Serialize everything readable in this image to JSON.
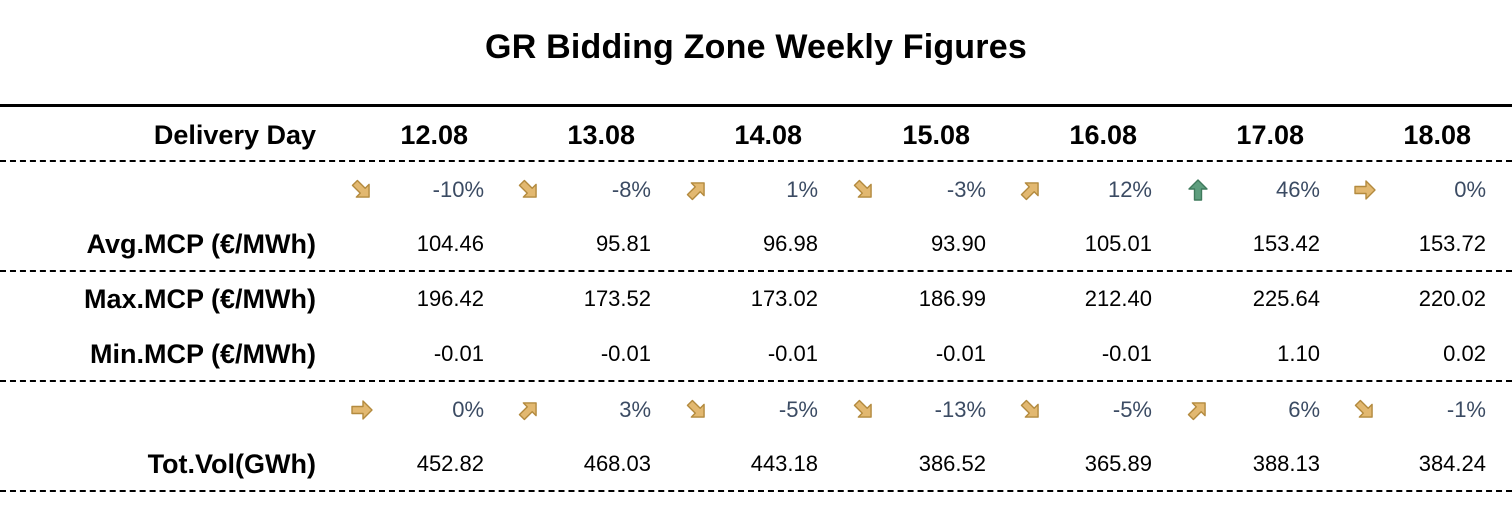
{
  "title": "GR Bidding Zone Weekly Figures",
  "colors": {
    "arrow_gold_fill": "#e2b870",
    "arrow_gold_stroke": "#b38a3e",
    "arrow_green_fill": "#5e9e7e",
    "arrow_green_stroke": "#3f7a5c",
    "pct_text": "#3b4b63"
  },
  "header": {
    "label": "Delivery Day",
    "days": [
      "12.08",
      "13.08",
      "14.08",
      "15.08",
      "16.08",
      "17.08",
      "18.08"
    ]
  },
  "mcp_change": {
    "pcts": [
      "-10%",
      "-8%",
      "1%",
      "-3%",
      "12%",
      "46%",
      "0%"
    ],
    "arrows": [
      "down-right-arrow-icon",
      "down-right-arrow-icon",
      "up-right-arrow-icon",
      "down-right-arrow-icon",
      "up-right-arrow-icon",
      "up-arrow-icon",
      "right-arrow-icon"
    ]
  },
  "avg_mcp": {
    "label": "Avg.MCP (€/MWh)",
    "values": [
      "104.46",
      "95.81",
      "96.98",
      "93.90",
      "105.01",
      "153.42",
      "153.72"
    ]
  },
  "max_mcp": {
    "label": "Max.MCP (€/MWh)",
    "values": [
      "196.42",
      "173.52",
      "173.02",
      "186.99",
      "212.40",
      "225.64",
      "220.02"
    ]
  },
  "min_mcp": {
    "label": "Min.MCP (€/MWh)",
    "values": [
      "-0.01",
      "-0.01",
      "-0.01",
      "-0.01",
      "-0.01",
      "1.10",
      "0.02"
    ]
  },
  "vol_change": {
    "pcts": [
      "0%",
      "3%",
      "-5%",
      "-13%",
      "-5%",
      "6%",
      "-1%"
    ],
    "arrows": [
      "right-arrow-icon",
      "up-right-arrow-icon",
      "down-right-arrow-icon",
      "down-right-arrow-icon",
      "down-right-arrow-icon",
      "up-right-arrow-icon",
      "down-right-arrow-icon"
    ]
  },
  "tot_vol": {
    "label": "Tot.Vol(GWh)",
    "values": [
      "452.82",
      "468.03",
      "443.18",
      "386.52",
      "365.89",
      "388.13",
      "384.24"
    ]
  }
}
